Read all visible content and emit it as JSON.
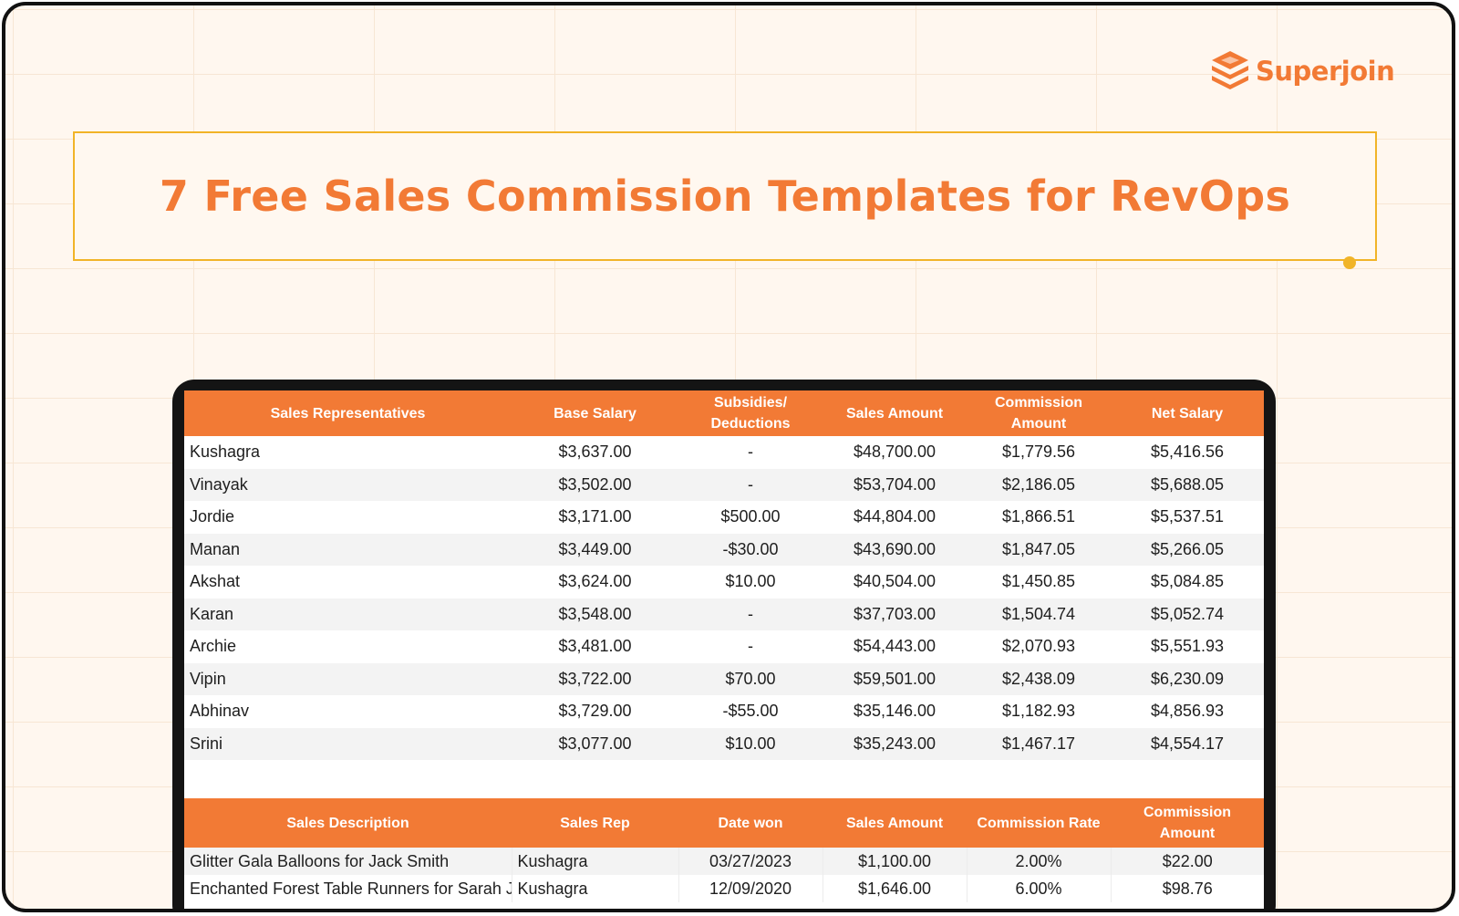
{
  "brand": {
    "name": "Superjoin",
    "logo_icon": "stacked-layers-icon",
    "color": "#f27a35"
  },
  "title": "7 Free Sales Commission Templates for RevOps",
  "colors": {
    "accent": "#f27a35",
    "title_border": "#f1b428",
    "background": "#fff7ef"
  },
  "table1": {
    "headers": [
      "Sales Representatives",
      "Base Salary",
      "Subsidies/ Deductions",
      "Sales Amount",
      "Commission Amount",
      "Net Salary"
    ],
    "rows": [
      [
        "Kushagra",
        "$3,637.00",
        "-",
        "$48,700.00",
        "$1,779.56",
        "$5,416.56"
      ],
      [
        "Vinayak",
        "$3,502.00",
        "-",
        "$53,704.00",
        "$2,186.05",
        "$5,688.05"
      ],
      [
        "Jordie",
        "$3,171.00",
        "$500.00",
        "$44,804.00",
        "$1,866.51",
        "$5,537.51"
      ],
      [
        "Manan",
        "$3,449.00",
        "-$30.00",
        "$43,690.00",
        "$1,847.05",
        "$5,266.05"
      ],
      [
        "Akshat",
        "$3,624.00",
        "$10.00",
        "$40,504.00",
        "$1,450.85",
        "$5,084.85"
      ],
      [
        "Karan",
        "$3,548.00",
        "-",
        "$37,703.00",
        "$1,504.74",
        "$5,052.74"
      ],
      [
        "Archie",
        "$3,481.00",
        "-",
        "$54,443.00",
        "$2,070.93",
        "$5,551.93"
      ],
      [
        "Vipin",
        "$3,722.00",
        "$70.00",
        "$59,501.00",
        "$2,438.09",
        "$6,230.09"
      ],
      [
        "Abhinav",
        "$3,729.00",
        "-$55.00",
        "$35,146.00",
        "$1,182.93",
        "$4,856.93"
      ],
      [
        "Srini",
        "$3,077.00",
        "$10.00",
        "$35,243.00",
        "$1,467.17",
        "$4,554.17"
      ]
    ]
  },
  "table2": {
    "headers": [
      "Sales Description",
      "Sales Rep",
      "Date won",
      "Sales Amount",
      "Commission Rate",
      "Commission Amount"
    ],
    "rows": [
      [
        "Glitter Gala Balloons for Jack Smith",
        "Kushagra",
        "03/27/2023",
        "$1,100.00",
        "2.00%",
        "$22.00"
      ],
      [
        "Enchanted Forest Table Runners for Sarah Johnson",
        "Kushagra",
        "12/09/2020",
        "$1,646.00",
        "6.00%",
        "$98.76"
      ]
    ]
  }
}
